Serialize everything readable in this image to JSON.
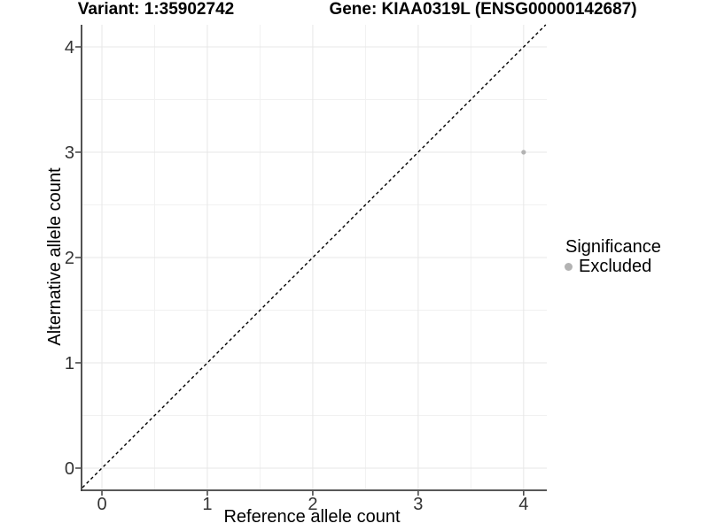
{
  "chart_data": {
    "type": "scatter",
    "titles": {
      "left": "Variant: 1:35902742",
      "right": "Gene: KIAA0319L (ENSG00000142687)"
    },
    "xlabel": "Reference allele count",
    "ylabel": "Alternative allele count",
    "x_ticks": [
      0,
      1,
      2,
      3,
      4
    ],
    "y_ticks": [
      0,
      1,
      2,
      3,
      4
    ],
    "xlim": [
      -0.185,
      4.22
    ],
    "ylim": [
      -0.202,
      4.21
    ],
    "grid": {
      "major": true,
      "minor": true
    },
    "points": [
      {
        "x": 4,
        "y": 3,
        "series": "Excluded"
      }
    ],
    "reference_line": {
      "type": "identity",
      "slope": 1,
      "intercept": 0,
      "style": "dashed"
    },
    "legend": {
      "title": "Significance",
      "position": "right",
      "items": [
        {
          "label": "Excluded",
          "color": "#b3b3b3"
        }
      ]
    }
  },
  "colors": {
    "background": "#ffffff",
    "grid_major": "#e7e7e7",
    "grid_minor": "#f1f1f1",
    "axis_line": "#404040",
    "tick_label": "#333333",
    "title_text": "#000000",
    "dashed_line": "#000000",
    "point_excluded": "#b3b3b3"
  }
}
